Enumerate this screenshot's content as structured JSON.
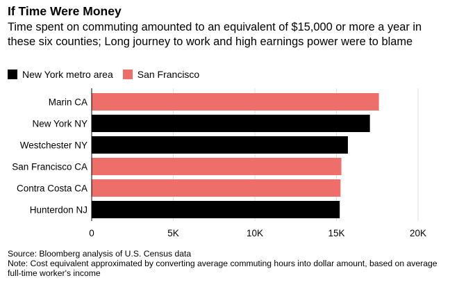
{
  "title": "If Time Were Money",
  "subtitle": "Time spent on commuting amounted to an equivalent of $15,000 or more a year in these six counties; Long journey to work and high earnings power were to blame",
  "legend": [
    {
      "label": "New York metro area",
      "color": "#000000"
    },
    {
      "label": "San Francisco",
      "color": "#ee6f6a"
    }
  ],
  "chart_data": {
    "type": "bar",
    "orientation": "horizontal",
    "categories": [
      "Marin CA",
      "New York NY",
      "Westchester NY",
      "San Francisco CA",
      "Contra Costa CA",
      "Hunterdon NJ"
    ],
    "values": [
      17600,
      17050,
      15700,
      15300,
      15250,
      15200
    ],
    "groups": [
      "San Francisco",
      "New York metro area",
      "New York metro area",
      "San Francisco",
      "San Francisco",
      "New York metro area"
    ],
    "xlim": [
      0,
      20000
    ],
    "xticks": [
      0,
      5000,
      10000,
      15000,
      20000
    ],
    "xtick_labels": [
      "0",
      "5K",
      "10K",
      "15K",
      "20K"
    ],
    "grid": true,
    "legend_position": "top-left"
  },
  "footer": {
    "source": "Source: Bloomberg analysis of U.S. Census data",
    "note": "Note: Cost equivalent approximated by converting average commuting hours into dollar amount, based on average full-time worker's income"
  }
}
